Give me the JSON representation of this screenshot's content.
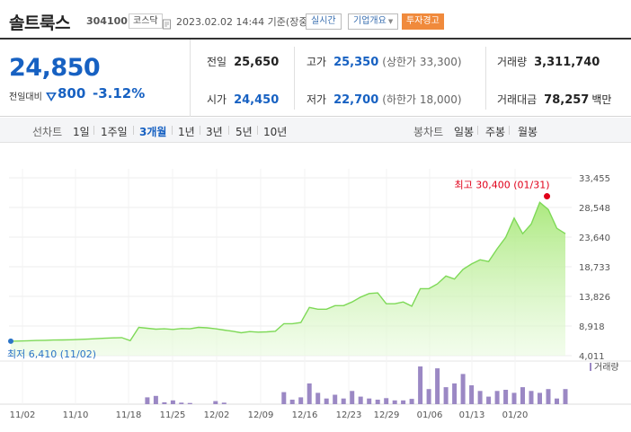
{
  "header": {
    "stock_name": "솔트룩스",
    "stock_code": "304100",
    "market_badge": "코스닥",
    "timestamp": "2023.02.02 14:44 기준(장중)",
    "realtime_label": "실시간",
    "company_label": "기업개요",
    "warning_label": "투자경고"
  },
  "price": {
    "current": "24,850",
    "change_label": "전일대비",
    "change_amount": "800",
    "change_rate": "-3.12%",
    "change_direction": "down"
  },
  "stats": {
    "prev_close_label": "전일",
    "prev_close": "25,650",
    "open_label": "시가",
    "open": "24,450",
    "high_label": "고가",
    "high": "25,350",
    "upper_limit": "(상한가 33,300)",
    "low_label": "저가",
    "low": "22,700",
    "lower_limit": "(하한가 18,000)",
    "volume_label": "거래량",
    "volume": "3,311,740",
    "amount_label": "거래대금",
    "amount": "78,257",
    "amount_unit": "백만"
  },
  "period_bar": {
    "line_label": "선차트",
    "line_periods": [
      "1일",
      "1주일",
      "3개월",
      "1년",
      "3년",
      "5년",
      "10년"
    ],
    "active_period": "3개월",
    "candle_label": "봉차트",
    "candle_periods": [
      "일봉",
      "주봉",
      "월봉"
    ]
  },
  "colors": {
    "accent_blue": "#1761c2",
    "line_green": "#7ed957",
    "area_green": "#c9f2a6",
    "volume_purple": "#9b88c4",
    "high_marker": "#e0001a",
    "low_marker": "#2b74c7",
    "warning_orange": "#f08a3c"
  },
  "chart_data": {
    "type": "area",
    "y_ticks": [
      "33,455",
      "28,548",
      "23,640",
      "18,733",
      "13,826",
      "8,918",
      "4,011"
    ],
    "ylim": [
      4011,
      33455
    ],
    "x_labels": [
      "11/02",
      "11/10",
      "11/18",
      "11/25",
      "12/02",
      "12/09",
      "12/16",
      "12/23",
      "12/29",
      "01/06",
      "01/13",
      "01/20"
    ],
    "series": [
      {
        "values": [
          6410,
          6440,
          6480,
          6520,
          6550,
          6600,
          6620,
          6640,
          6700,
          6750,
          6820,
          6900,
          6950,
          7000,
          6500,
          8700,
          8550,
          8400,
          8450,
          8350,
          8500,
          8450,
          8700,
          8620,
          8450,
          8250,
          8050,
          7800,
          8000,
          7900,
          7950,
          8050,
          9300,
          9300,
          9500,
          12000,
          11700,
          11700,
          12300,
          12300,
          12900,
          13700,
          14300,
          14400,
          12600,
          12600,
          12900,
          12200,
          15100,
          15100,
          15900,
          17200,
          16700,
          18300,
          19200,
          19900,
          19600,
          21700,
          23600,
          26800,
          24200,
          25800,
          29400,
          28200,
          25100,
          24200
        ]
      }
    ],
    "high_annotation": "최고 30,400 (01/31)",
    "high_value": 30400,
    "low_annotation": "최저 6,410 (11/02)",
    "low_value": 6410,
    "volume_legend": "거래량",
    "volume_values": [
      0,
      0,
      0,
      0,
      0,
      0,
      0,
      0,
      0,
      0,
      0,
      0,
      0,
      0,
      0,
      0,
      0.18,
      0.22,
      0.05,
      0.1,
      0.04,
      0.03,
      0,
      0,
      0.08,
      0.04,
      0,
      0,
      0,
      0,
      0,
      0,
      0.32,
      0.12,
      0.18,
      0.55,
      0.3,
      0.15,
      0.25,
      0.15,
      0.35,
      0.2,
      0.15,
      0.12,
      0.16,
      0.1,
      0.1,
      0.14,
      1.0,
      0.4,
      0.95,
      0.45,
      0.55,
      0.8,
      0.5,
      0.35,
      0.2,
      0.35,
      0.38,
      0.3,
      0.45,
      0.35,
      0.3,
      0.4,
      0.15,
      0.4
    ]
  }
}
